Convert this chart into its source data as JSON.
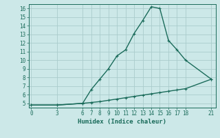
{
  "title": "",
  "xlabel": "Humidex (Indice chaleur)",
  "ylabel": "",
  "x_ticks": [
    0,
    3,
    6,
    7,
    8,
    9,
    10,
    11,
    12,
    13,
    14,
    15,
    16,
    17,
    18,
    21
  ],
  "ylim": [
    4.5,
    16.5
  ],
  "xlim": [
    -0.3,
    21.5
  ],
  "background_color": "#cce8e8",
  "grid_color": "#aacccc",
  "line_color": "#1a6b5a",
  "curve1_x": [
    0,
    3,
    6,
    7,
    8,
    9,
    10,
    11,
    12,
    13,
    14,
    15,
    16,
    17,
    18,
    21
  ],
  "curve1_y": [
    4.8,
    4.8,
    5.0,
    6.6,
    7.8,
    9.0,
    10.5,
    11.2,
    13.1,
    14.6,
    16.2,
    16.0,
    12.3,
    11.2,
    10.0,
    7.8
  ],
  "curve2_x": [
    0,
    3,
    6,
    7,
    8,
    9,
    10,
    11,
    12,
    13,
    14,
    15,
    16,
    17,
    18,
    21
  ],
  "curve2_y": [
    4.8,
    4.8,
    5.0,
    5.1,
    5.2,
    5.35,
    5.5,
    5.65,
    5.8,
    5.95,
    6.1,
    6.25,
    6.4,
    6.55,
    6.7,
    7.8
  ],
  "y_ticks": [
    5,
    6,
    7,
    8,
    9,
    10,
    11,
    12,
    13,
    14,
    15,
    16
  ],
  "marker_size": 2.5,
  "line_width": 1.0,
  "tick_fontsize": 5.5,
  "xlabel_fontsize": 6.5
}
